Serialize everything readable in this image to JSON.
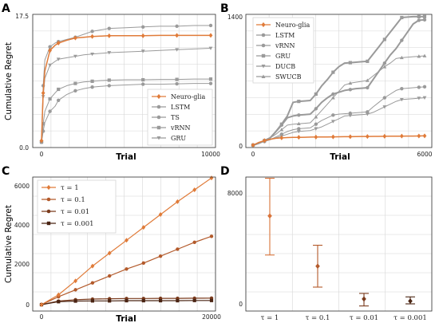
{
  "colors": {
    "neuro_glia": "#e07b39",
    "gray": "#9a9a9a",
    "tau_1": "#e07b39",
    "tau_01": "#b35a2b",
    "tau_001": "#7a3a1c",
    "tau_0001": "#4a2413",
    "d_points": [
      "#d9743a",
      "#b35a2b",
      "#7a3a1c",
      "#4a2413"
    ]
  },
  "chart_data": [
    {
      "panel": "A",
      "type": "line",
      "xlabel": "Trial",
      "ylabel": "Cumulative Regret",
      "xlim": [
        0,
        10000
      ],
      "ylim": [
        0,
        17.5
      ],
      "xticks": [
        "0",
        "10000"
      ],
      "yticks": [
        "0.0",
        "17.5"
      ],
      "grid": true,
      "legend_position": "lower-right",
      "x": [
        0,
        50,
        100,
        200,
        500,
        800,
        1000,
        1500,
        2000,
        2500,
        3000,
        3500,
        4000,
        5000,
        6000,
        7000,
        8000,
        9000,
        10000
      ],
      "series": [
        {
          "name": "Neuro-glia",
          "marker": "diamond",
          "values": [
            0.5,
            4.0,
            7.0,
            10.0,
            12.8,
            13.5,
            13.8,
            14.2,
            14.5,
            14.6,
            14.7,
            14.75,
            14.8,
            14.8,
            14.8,
            14.85,
            14.85,
            14.85,
            14.85
          ]
        },
        {
          "name": "LSTM",
          "marker": "circle",
          "values": [
            0.3,
            4.5,
            8.0,
            11.5,
            13.3,
            13.8,
            14.0,
            14.3,
            14.6,
            15.0,
            15.4,
            15.6,
            15.8,
            15.9,
            16.0,
            16.1,
            16.1,
            16.2,
            16.2
          ]
        },
        {
          "name": "TS",
          "marker": "circle",
          "values": [
            0.3,
            1.0,
            1.8,
            3.0,
            4.5,
            5.2,
            6.0,
            6.8,
            7.3,
            7.6,
            7.8,
            7.9,
            8.0,
            8.1,
            8.2,
            8.2,
            8.25,
            8.3,
            8.3
          ]
        },
        {
          "name": "vRNN",
          "marker": "square",
          "values": [
            0.3,
            1.5,
            2.8,
            4.5,
            6.2,
            7.0,
            7.5,
            8.0,
            8.3,
            8.5,
            8.6,
            8.7,
            8.75,
            8.8,
            8.8,
            8.85,
            8.85,
            8.9,
            8.9
          ]
        },
        {
          "name": "GRU",
          "marker": "triangle-down",
          "values": [
            0.3,
            3.5,
            6.5,
            9.0,
            10.8,
            11.3,
            11.6,
            11.8,
            12.0,
            12.2,
            12.3,
            12.4,
            12.5,
            12.6,
            12.7,
            12.8,
            12.9,
            13.0,
            13.1
          ]
        }
      ]
    },
    {
      "panel": "B",
      "type": "line",
      "xlabel": "Trial",
      "ylabel": "",
      "xlim": [
        0,
        6000
      ],
      "ylim": [
        0,
        1400
      ],
      "xticks": [
        "0",
        "6000"
      ],
      "yticks": [
        "0",
        "1400"
      ],
      "grid": true,
      "legend_position": "upper-left",
      "x": [
        0,
        100,
        200,
        400,
        600,
        800,
        1000,
        1200,
        1400,
        1600,
        1800,
        2000,
        2200,
        2400,
        2600,
        2800,
        3000,
        3200,
        3400,
        3600,
        3800,
        4000,
        4200,
        4400,
        4600,
        4800,
        5000,
        5200,
        5400,
        5600,
        5800,
        6000
      ],
      "series": [
        {
          "name": "Neuro-glia",
          "marker": "diamond",
          "values": [
            0,
            15,
            30,
            50,
            65,
            75,
            80,
            83,
            85,
            86,
            87,
            88,
            89,
            90,
            90,
            91,
            92,
            93,
            93,
            94,
            95,
            95,
            96,
            96,
            97,
            98,
            98,
            99,
            100,
            100,
            101,
            102
          ]
        },
        {
          "name": "LSTM",
          "marker": "circle",
          "values": [
            0,
            10,
            20,
            50,
            80,
            150,
            220,
            300,
            320,
            330,
            335,
            340,
            400,
            470,
            520,
            560,
            580,
            600,
            610,
            620,
            625,
            630,
            720,
            810,
            900,
            990,
            1060,
            1150,
            1240,
            1330,
            1370,
            1375
          ]
        },
        {
          "name": "vRNN",
          "marker": "circle",
          "values": [
            0,
            10,
            20,
            40,
            60,
            90,
            120,
            150,
            170,
            180,
            185,
            190,
            230,
            270,
            300,
            330,
            340,
            345,
            350,
            355,
            360,
            365,
            420,
            470,
            520,
            560,
            600,
            620,
            625,
            630,
            635,
            640
          ]
        },
        {
          "name": "GRU",
          "marker": "square",
          "values": [
            0,
            10,
            20,
            50,
            80,
            150,
            230,
            320,
            470,
            480,
            485,
            490,
            560,
            650,
            720,
            800,
            860,
            900,
            905,
            910,
            915,
            920,
            1000,
            1080,
            1160,
            1240,
            1320,
            1400,
            1405,
            1410,
            1410,
            1410
          ]
        },
        {
          "name": "DUCB",
          "marker": "triangle-down",
          "values": [
            0,
            10,
            20,
            40,
            60,
            80,
            100,
            120,
            140,
            150,
            155,
            160,
            180,
            200,
            230,
            260,
            290,
            320,
            325,
            330,
            335,
            340,
            360,
            390,
            420,
            450,
            480,
            500,
            505,
            510,
            515,
            520
          ]
        },
        {
          "name": "SWUCB",
          "marker": "triangle-up",
          "values": [
            0,
            12,
            25,
            50,
            80,
            120,
            170,
            220,
            230,
            235,
            240,
            245,
            310,
            380,
            450,
            520,
            590,
            660,
            680,
            690,
            700,
            710,
            760,
            810,
            860,
            900,
            950,
            960,
            965,
            970,
            975,
            980
          ]
        }
      ]
    },
    {
      "panel": "C",
      "type": "line",
      "xlabel": "Trial",
      "ylabel": "Cumulative Regret",
      "xlim": [
        0,
        20000
      ],
      "ylim": [
        0,
        6000
      ],
      "xticks": [
        "0",
        "20000"
      ],
      "yticks": [
        "0",
        "2000",
        "4000",
        "6000"
      ],
      "grid": true,
      "legend_position": "upper-left",
      "x": [
        0,
        2000,
        4000,
        6000,
        8000,
        10000,
        12000,
        14000,
        16000,
        18000,
        20000
      ],
      "series": [
        {
          "name": "τ = 1",
          "marker": "diamond",
          "values": [
            0,
            500,
            1200,
            1950,
            2600,
            3250,
            3900,
            4550,
            5200,
            5800,
            6400
          ]
        },
        {
          "name": "τ = 0.1",
          "marker": "circle",
          "values": [
            0,
            400,
            750,
            1100,
            1450,
            1800,
            2100,
            2450,
            2800,
            3150,
            3450
          ]
        },
        {
          "name": "τ = 0.01",
          "marker": "circle",
          "values": [
            0,
            180,
            250,
            280,
            300,
            310,
            310,
            320,
            320,
            325,
            330
          ]
        },
        {
          "name": "τ = 0.001",
          "marker": "square",
          "values": [
            0,
            150,
            180,
            190,
            190,
            200,
            200,
            200,
            200,
            210,
            210
          ]
        }
      ]
    },
    {
      "panel": "D",
      "type": "scatter",
      "categories": [
        "τ = 1",
        "τ = 0.1",
        "τ = 0.01",
        "τ = 0.001"
      ],
      "values": [
        6300,
        2700,
        350,
        200
      ],
      "err_low": [
        3500,
        1200,
        -150,
        0
      ],
      "err_high": [
        9000,
        4200,
        750,
        500
      ],
      "ylim": [
        -500,
        9500
      ],
      "yticks": [
        "0",
        "8000"
      ],
      "grid": true
    }
  ],
  "panels": {
    "A": {
      "letter": "A",
      "xlabel": "Trial",
      "ylabel": "Cumulative Regret",
      "yticks": [
        "0.0",
        "17.5"
      ],
      "xticks": [
        "0",
        "10000"
      ],
      "legend": [
        "Neuro-glia",
        "LSTM",
        "TS",
        "vRNN",
        "GRU"
      ]
    },
    "B": {
      "letter": "B",
      "xlabel": "Trial",
      "yticks": [
        "0",
        "1400"
      ],
      "xticks": [
        "0",
        "6000"
      ],
      "legend": [
        "Neuro-glia",
        "LSTM",
        "vRNN",
        "GRU",
        "DUCB",
        "SWUCB"
      ]
    },
    "C": {
      "letter": "C",
      "xlabel": "Trial",
      "ylabel": "Cumulative Regret",
      "yticks": [
        "0",
        "2000",
        "4000",
        "6000"
      ],
      "xticks": [
        "0",
        "20000"
      ],
      "legend": [
        "τ = 1",
        "τ = 0.1",
        "τ = 0.01",
        "τ = 0.001"
      ]
    },
    "D": {
      "letter": "D",
      "yticks": [
        "0",
        "8000"
      ],
      "xticks": [
        "τ = 1",
        "τ = 0.1",
        "τ = 0.01",
        "τ = 0.001"
      ]
    }
  }
}
